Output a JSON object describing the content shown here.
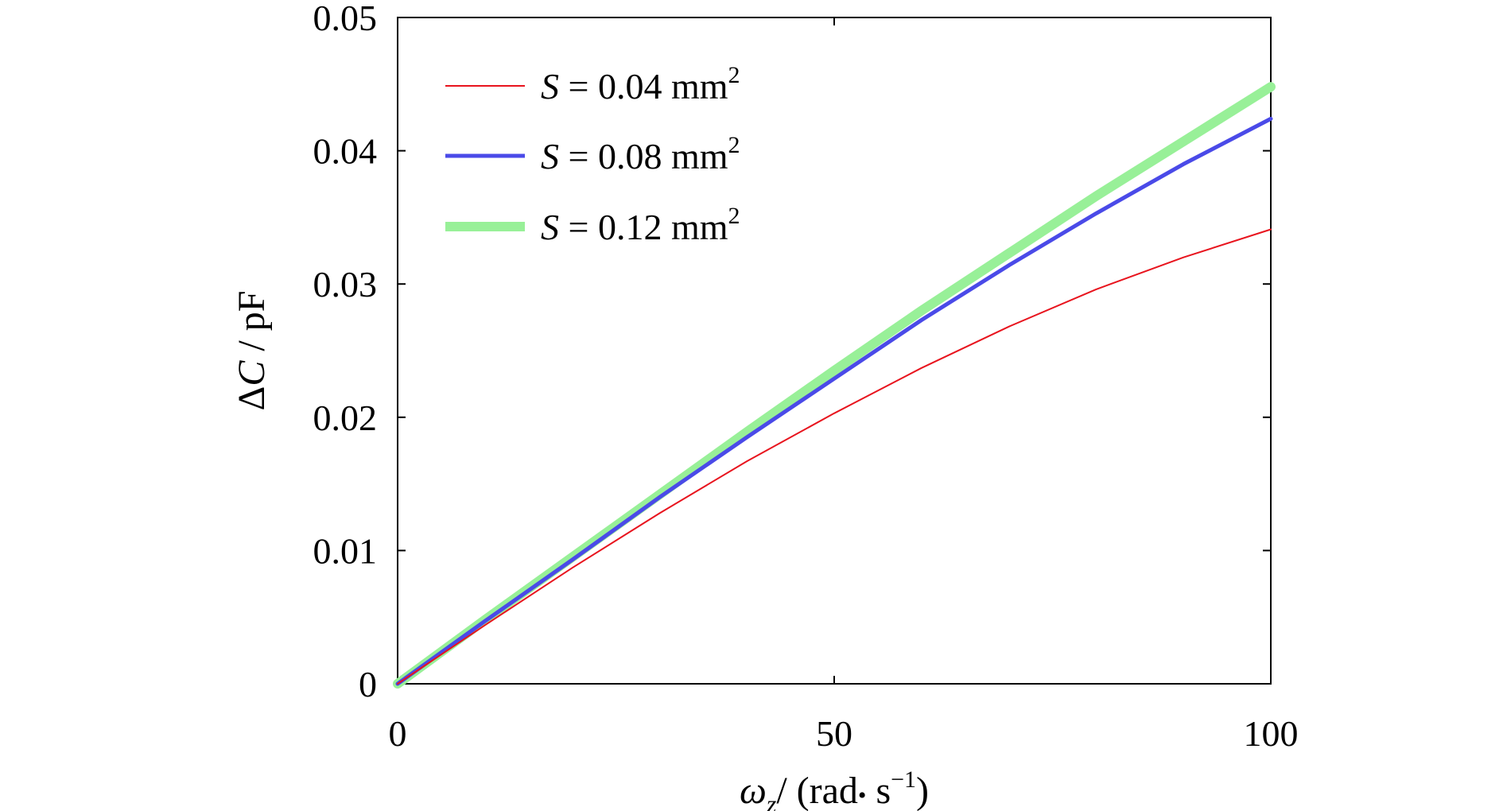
{
  "chart_data": {
    "type": "line",
    "xlabel": {
      "omega": "ω",
      "sub": "z",
      "rest": "/ (rad",
      "dot": "•",
      "s": " s",
      "exp": "−1",
      "close": ")"
    },
    "ylabel": {
      "delta": "Δ",
      "c": "C",
      "rest": " / pF"
    },
    "xlim": [
      0,
      100
    ],
    "ylim": [
      0,
      0.05
    ],
    "xticks": [
      0,
      50,
      100
    ],
    "xtick_labels": [
      "0",
      "50",
      "100"
    ],
    "yticks": [
      0,
      0.01,
      0.02,
      0.03,
      0.04,
      0.05
    ],
    "ytick_labels": [
      "0",
      "0.01",
      "0.02",
      "0.03",
      "0.04",
      "0.05"
    ],
    "grid": false,
    "legend_position": "top-left",
    "x": [
      0,
      10,
      20,
      30,
      40,
      50,
      60,
      70,
      80,
      90,
      100
    ],
    "series": [
      {
        "name": "S = 0.04 mm²",
        "label": {
          "s": "S",
          "eq": " = 0.04 mm",
          "exp": "2"
        },
        "color": "#e8141e",
        "width": 2,
        "values": [
          0,
          0.0044,
          0.0087,
          0.0128,
          0.0167,
          0.0203,
          0.0237,
          0.0268,
          0.0296,
          0.032,
          0.0341
        ]
      },
      {
        "name": "S = 0.08 mm²",
        "label": {
          "s": "S",
          "eq": " = 0.08 mm",
          "exp": "2"
        },
        "color": "#4a4ae8",
        "width": 5,
        "values": [
          0,
          0.0047,
          0.0093,
          0.014,
          0.0185,
          0.0229,
          0.0273,
          0.0314,
          0.0353,
          0.039,
          0.0424
        ]
      },
      {
        "name": "S = 0.12 mm²",
        "label": {
          "s": "S",
          "eq": " = 0.12 mm",
          "exp": "2"
        },
        "color": "#98f098",
        "width": 12,
        "values": [
          0,
          0.0048,
          0.0095,
          0.0142,
          0.0189,
          0.0235,
          0.028,
          0.0323,
          0.0366,
          0.0407,
          0.0448
        ]
      }
    ]
  }
}
